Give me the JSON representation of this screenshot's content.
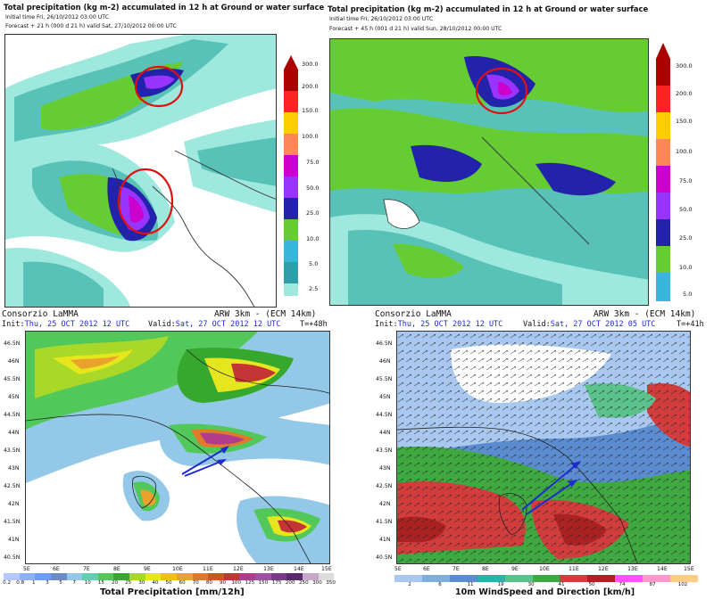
{
  "palette": {
    "precip12h": [
      "#9ee8de",
      "#58c2b8",
      "#2f9ea8",
      "#3ab4d8",
      "#66cc33",
      "#2222aa",
      "#9933ff",
      "#cc00cc",
      "#ff8855",
      "#ffcc00",
      "#ff2222",
      "#aa0000"
    ],
    "total_precip": [
      "#b4c8ff",
      "#8fb0ff",
      "#6e9bff",
      "#6d8ac9",
      "#94c8e8",
      "#60d0b0",
      "#52c85a",
      "#36a82e",
      "#a9d828",
      "#e6e61e",
      "#f0c018",
      "#e9a22c",
      "#e07a2a",
      "#d2541c",
      "#c53434",
      "#b23c8c",
      "#a050a0",
      "#7a3a8a",
      "#5a2a6a",
      "#c8a8c8",
      "#dcdcdc"
    ],
    "wind": [
      "#a8c8f0",
      "#7eaede",
      "#5c8cd0",
      "#2eb0a8",
      "#5cc28c",
      "#40a840",
      "#d13d3d",
      "#aa2222",
      "#ff55ff",
      "#ff99cc",
      "#ffcc88"
    ]
  },
  "panel_tl": {
    "title": "Total precipitation (kg m-2) accumulated in  12 h at Ground or water surface",
    "initial": "Initial time  Fri, 26/10/2012  03:00 UTC",
    "forecast": "Forecast  +  21 h (000 d 21 h)  valid Sat, 27/10/2012 00:00 UTC",
    "colorbar_labels": [
      "300.0",
      "200.0",
      "150.0",
      "100.0",
      "75.0",
      "50.0",
      "25.0",
      "10.0",
      "5.0",
      "2.5"
    ]
  },
  "panel_tr": {
    "title": "Total precipitation (kg m-2) accumulated in  12 h at Ground or water surface",
    "initial": "Initial time  Fri, 26/10/2012  03:00 UTC",
    "forecast": "Forecast  +  45 h  (001 d 21 h)  valid Sun, 28/10/2012 00:00 UTC",
    "colorbar_labels": [
      "300.0",
      "200.0",
      "150.0",
      "100.0",
      "75.0",
      "50.0",
      "25.0",
      "10.0",
      "5.0"
    ]
  },
  "panel_bl": {
    "source": "Consorzio LaMMA",
    "model": "ARW 3km - (ECM 14km)",
    "init_label": "Init:",
    "init_value": "Thu, 25 OCT 2012  12 UTC",
    "valid_label": "Valid:",
    "valid_value": "Sat, 27 OCT 2012  12 UTC",
    "lead": "T=+48h",
    "lat_labels": [
      "46.5N",
      "46N",
      "45.5N",
      "45N",
      "44.5N",
      "44N",
      "43.5N",
      "43N",
      "42.5N",
      "42N",
      "41.5N",
      "41N",
      "40.5N"
    ],
    "lon_labels": [
      "5E",
      "6E",
      "7E",
      "8E",
      "9E",
      "10E",
      "11E",
      "12E",
      "13E",
      "14E",
      "15E"
    ],
    "colorbar_ticks": [
      "0.2",
      "0.8",
      "1",
      "3",
      "5",
      "7",
      "10",
      "15",
      "20",
      "25",
      "30",
      "40",
      "50",
      "60",
      "70",
      "80",
      "90",
      "100",
      "125",
      "150",
      "175",
      "200",
      "250",
      "300",
      "350"
    ],
    "colorbar_title": "Total Precipitation  [mm/12h]"
  },
  "panel_br": {
    "source": "Consorzio LaMMA",
    "model": "ARW 3km - (ECM 14km)",
    "init_label": "Init:",
    "init_value": "Thu, 25 OCT 2012  12 UTC",
    "valid_label": "Valid:",
    "valid_value": "Sat, 27 OCT 2012  05 UTC",
    "lead": "T=+41h",
    "lat_labels": [
      "46.5N",
      "46N",
      "45.5N",
      "45N",
      "44.5N",
      "44N",
      "43.5N",
      "43N",
      "42.5N",
      "42N",
      "41.5N",
      "41N",
      "40.5N"
    ],
    "lon_labels": [
      "5E",
      "6E",
      "7E",
      "8E",
      "9E",
      "10E",
      "11E",
      "12E",
      "13E",
      "14E",
      "15E"
    ],
    "colorbar_ticks": [
      "2",
      "6",
      "11",
      "19",
      "30",
      "41",
      "50",
      "74",
      "87",
      "102"
    ],
    "colorbar_title": "10m WindSpeed and Direction [km/h]"
  }
}
